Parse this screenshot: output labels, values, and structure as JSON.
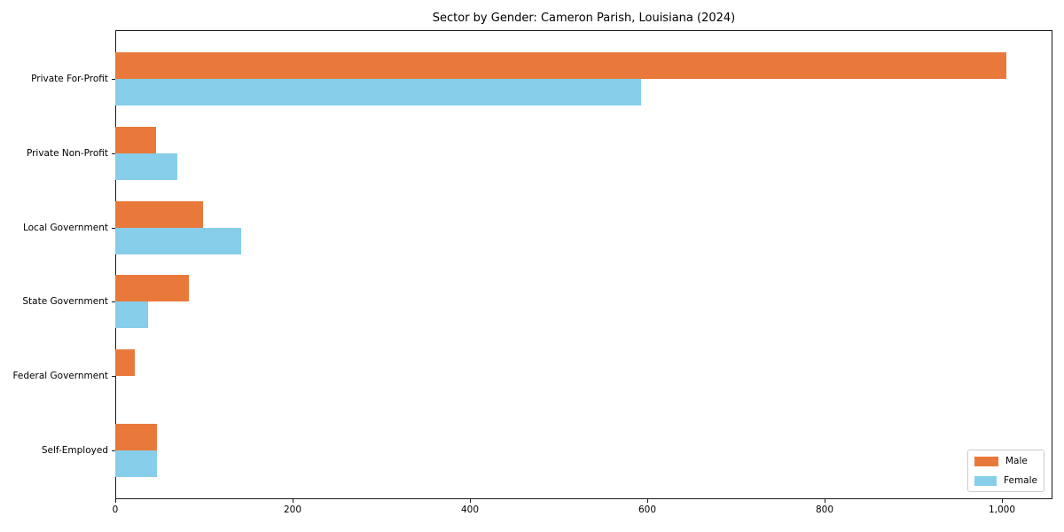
{
  "title": "Sector by Gender: Cameron Parish, Louisiana (2024)",
  "chart_data": {
    "type": "bar",
    "orientation": "horizontal",
    "title": "Sector by Gender: Cameron Parish, Louisiana (2024)",
    "xlabel": "",
    "ylabel": "",
    "categories": [
      "Private For-Profit",
      "Private Non-Profit",
      "Local Government",
      "State Government",
      "Federal Government",
      "Self-Employed"
    ],
    "series": [
      {
        "name": "Male",
        "color": "#E8793B",
        "values": [
          1005,
          46,
          99,
          83,
          22,
          47
        ]
      },
      {
        "name": "Female",
        "color": "#87CEEB",
        "values": [
          593,
          70,
          142,
          37,
          0,
          47
        ]
      }
    ],
    "x_ticks": [
      0,
      200,
      400,
      600,
      800,
      1000
    ],
    "x_tick_labels": [
      "0",
      "200",
      "400",
      "600",
      "800",
      "1,000"
    ],
    "xlim": [
      0,
      1057
    ],
    "grid": false,
    "legend_position": "lower right"
  }
}
